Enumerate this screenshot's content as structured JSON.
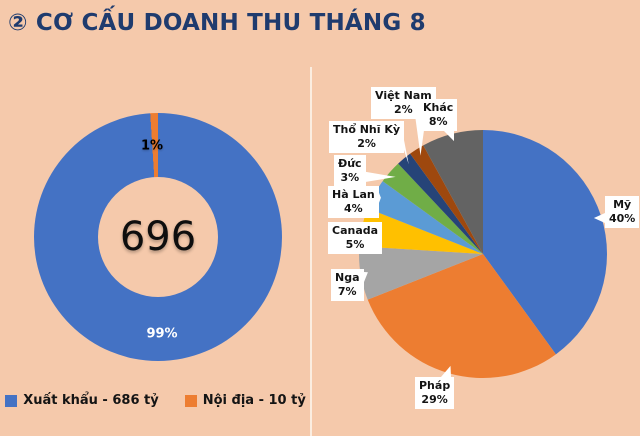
{
  "title": "② CƠ CẤU DOANH THU THÁNG 8",
  "theme": {
    "background": "#F5C9AB",
    "title_color": "#1F3B6E",
    "divider_color": "#FBEDE0",
    "callout_bg": "#FFFFFF",
    "text_color": "#141414"
  },
  "chart_data": [
    {
      "type": "pie",
      "variant": "donut",
      "name": "revenue-structure-donut",
      "center_label": "696",
      "legend_position": "bottom",
      "slices": [
        {
          "label": "Xuất khẩu - 686 tỷ",
          "value": 99,
          "pct_label": "99%",
          "color": "#4472C4",
          "pct_label_color": "#FFFFFF"
        },
        {
          "label": "Nội địa - 10 tỷ",
          "value": 1,
          "pct_label": "1%",
          "color": "#ED7D31",
          "pct_label_color": "#000000"
        }
      ]
    },
    {
      "type": "pie",
      "name": "export-market-share-pie",
      "start_angle_deg": 0,
      "direction": "clockwise",
      "slices": [
        {
          "label": "Mỹ",
          "value": 40,
          "pct_label": "40%",
          "color": "#4472C4"
        },
        {
          "label": "Pháp",
          "value": 29,
          "pct_label": "29%",
          "color": "#ED7D31"
        },
        {
          "label": "Nga",
          "value": 7,
          "pct_label": "7%",
          "color": "#A5A5A5"
        },
        {
          "label": "Canada",
          "value": 5,
          "pct_label": "5%",
          "color": "#FFC000"
        },
        {
          "label": "Hà Lan",
          "value": 4,
          "pct_label": "4%",
          "color": "#5B9BD5"
        },
        {
          "label": "Đức",
          "value": 3,
          "pct_label": "3%",
          "color": "#70AD47"
        },
        {
          "label": "Thổ Nhĩ Kỳ",
          "value": 2,
          "pct_label": "2%",
          "color": "#264478"
        },
        {
          "label": "Việt Nam",
          "value": 2,
          "pct_label": "2%",
          "color": "#9E480E"
        },
        {
          "label": "Khác",
          "value": 8,
          "pct_label": "8%",
          "color": "#636363"
        }
      ]
    }
  ]
}
